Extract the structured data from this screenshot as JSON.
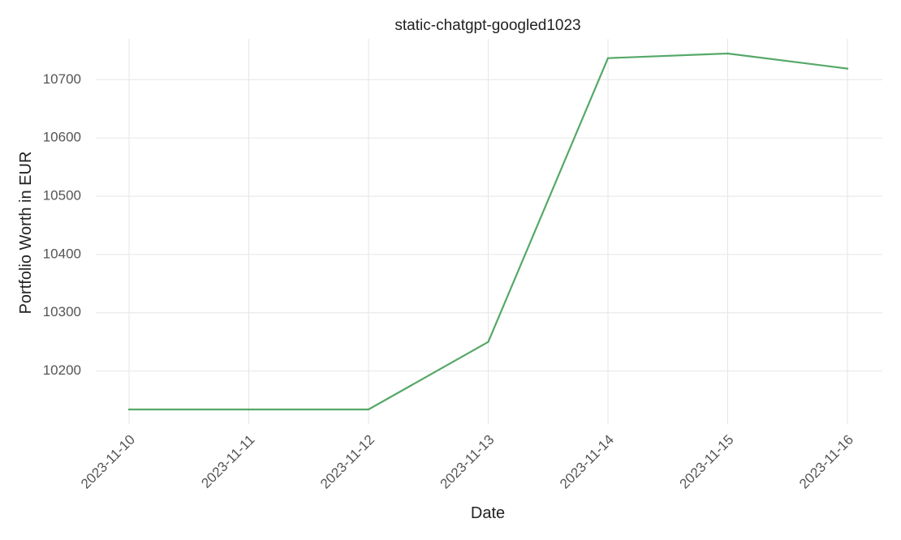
{
  "chart_data": {
    "type": "line",
    "title": "static-chatgpt-googled1023",
    "xlabel": "Date",
    "ylabel": "Portfolio Worth in EUR",
    "x": [
      "2023-11-10",
      "2023-11-11",
      "2023-11-12",
      "2023-11-13",
      "2023-11-14",
      "2023-11-15",
      "2023-11-16"
    ],
    "series": [
      {
        "values": [
          10134,
          10134,
          10134,
          10250,
          10737,
          10745,
          10719
        ],
        "color": "#55a868"
      }
    ],
    "yticks": [
      10200,
      10300,
      10400,
      10500,
      10600,
      10700
    ],
    "ylim": [
      10109,
      10770
    ],
    "grid": true,
    "legend": "none"
  }
}
